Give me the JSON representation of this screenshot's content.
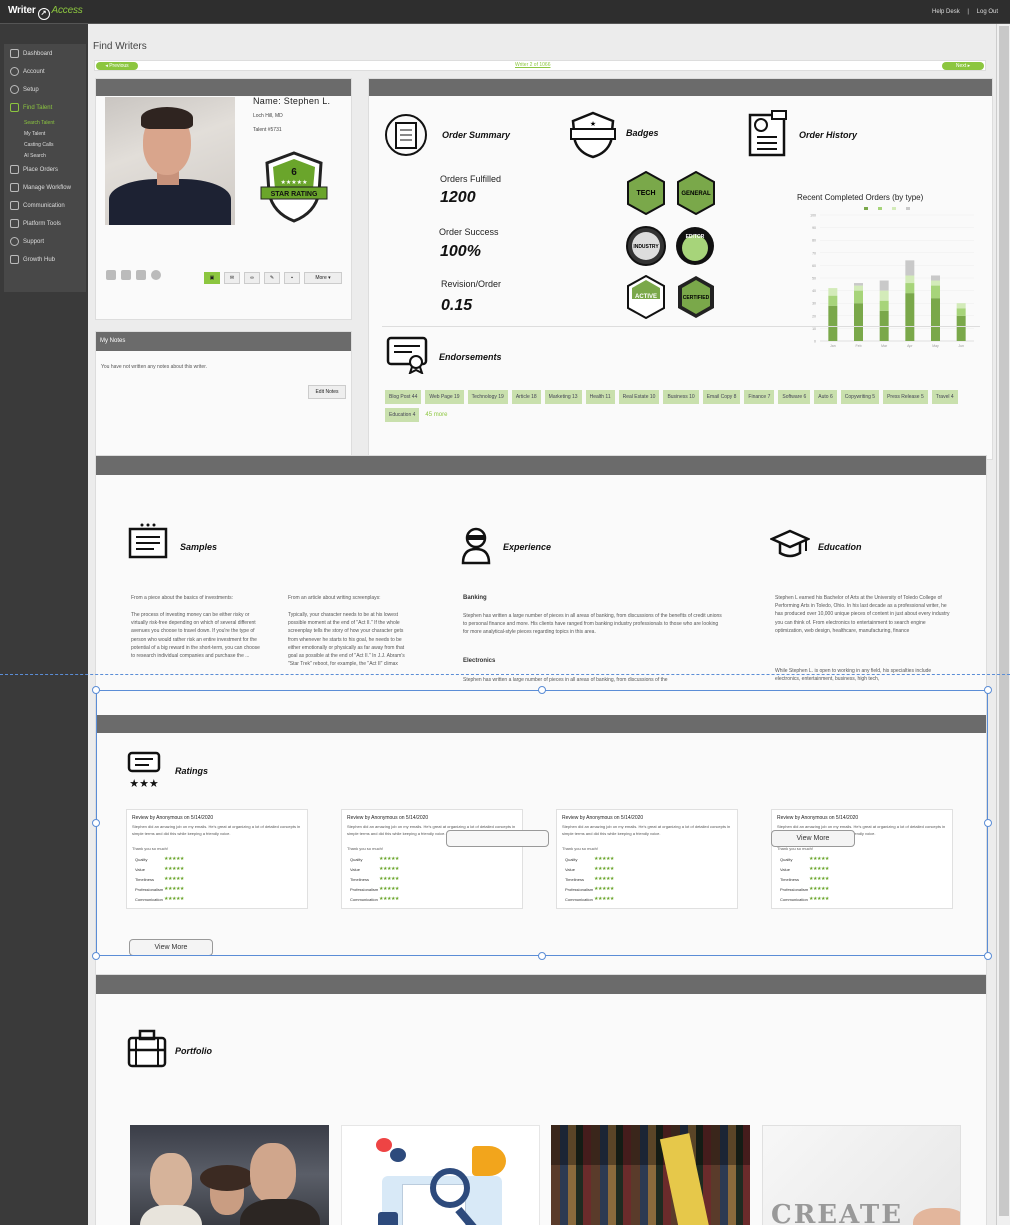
{
  "topbar": {
    "logo_main": "Writer",
    "logo_accent": "Access",
    "help_desk": "Help Desk",
    "separator": "|",
    "logout": "Log Out"
  },
  "sidebar": {
    "items": [
      {
        "label": "Dashboard",
        "icon": "dashboard-icon"
      },
      {
        "label": "Account",
        "icon": "user-icon"
      },
      {
        "label": "Setup",
        "icon": "gear-icon"
      },
      {
        "label": "Find Talent",
        "icon": "users-icon"
      },
      {
        "label": "Place Orders",
        "icon": "cart-icon"
      },
      {
        "label": "Manage Workflow",
        "icon": "workflow-icon"
      },
      {
        "label": "Communication",
        "icon": "mail-icon"
      },
      {
        "label": "Platform Tools",
        "icon": "tools-icon"
      },
      {
        "label": "Support",
        "icon": "info-icon"
      },
      {
        "label": "Growth Hub",
        "icon": "chart-icon"
      }
    ],
    "sub_items": [
      "Search Talent",
      "My Talent",
      "Casting Calls",
      "AI Search"
    ]
  },
  "page": {
    "title": "Find Writers",
    "prev": "Previous",
    "next": "Next",
    "pager": "Writer 2 of 1066"
  },
  "profile": {
    "name": "Name: Stephen L.",
    "location": "Loch Hill, MD",
    "talent_id": "Talent #5731",
    "star_level": "6",
    "star_rating_label": "STAR RATING",
    "more": "More",
    "notes_title": "My Notes",
    "notes_text": "You have not written any notes about this writer.",
    "edit_notes": "Edit Notes"
  },
  "summary": {
    "order_summary": "Order Summary",
    "badges": "Badges",
    "order_history": "Order History",
    "orders_fulfilled_label": "Orders Fulfilled",
    "orders_fulfilled": "1200",
    "order_success_label": "Order Success",
    "order_success": "100%",
    "revision_label": "Revision/Order",
    "revision": "0.15",
    "badge_names": [
      "TECH",
      "GENERAL",
      "INDUSTRY",
      "EDITOR",
      "ACTIVE",
      "CERTIFIED"
    ],
    "endorsements_title": "Endorsements",
    "endorsements": [
      "Blog Post 44",
      "Web Page 19",
      "Technology 19",
      "Article 18",
      "Marketing 13",
      "Health 11",
      "Real Estate 10",
      "Business 10",
      "Email Copy 8",
      "Finance 7",
      "Software 6",
      "Auto 6",
      "Copywriting 5",
      "Press Release 5",
      "Travel 4",
      "Education 4"
    ],
    "endorsements_more": "45 more"
  },
  "chart_data": {
    "type": "bar",
    "title": "Recent Completed Orders (by type)",
    "categories": [
      "Jan",
      "Feb",
      "Mar",
      "Apr",
      "May",
      "Jun"
    ],
    "series": [
      {
        "name": "Blog",
        "values": [
          28,
          30,
          24,
          38,
          34,
          20
        ],
        "color": "#7aa84a"
      },
      {
        "name": "Web",
        "values": [
          8,
          10,
          8,
          8,
          10,
          6
        ],
        "color": "#a7d47a"
      },
      {
        "name": "Article",
        "values": [
          6,
          4,
          8,
          6,
          4,
          4
        ],
        "color": "#d3ebb9"
      },
      {
        "name": "Other",
        "values": [
          0,
          2,
          8,
          12,
          4,
          0
        ],
        "color": "#c9c9c9"
      }
    ],
    "ylim": [
      0,
      100
    ],
    "yticks": [
      "0",
      "10",
      "20",
      "30",
      "40",
      "50",
      "60",
      "70",
      "80",
      "90",
      "100"
    ]
  },
  "details": {
    "samples_title": "Samples",
    "sample1_intro": "From a piece about the basics of investments:",
    "sample1_text": "The process of investing money can be either risky or virtually risk-free depending on which of several different avenues you choose to travel down. If you're the type of person who would rather risk an entire investment for the potential of a big reward in the short-term, you can choose to research individual companies and purchase the ...",
    "sample2_intro": "From an article about writing screenplays:",
    "sample2_text": "Typically, your character needs to be at his lowest possible moment at the end of \"Act II.\" If the whole screenplay tells the story of how your character gets from whenever he starts to his goal, he needs to be either emotionally or physically as far away from that goal as possible at the end of \"Act II.\" In J.J. Abram's \"Star Trek\" reboot, for example, the \"Act II\" climax",
    "experience_title": "Experience",
    "exp_banking": "Banking",
    "exp_banking_text": "Stephen has written a large number of pieces in all areas of banking, from discussions of the benefits of credit unions to personal finance and more. His clients have ranged from banking industry professionals to those who are looking for more analytical-style pieces regarding topics in this area.",
    "exp_electronics": "Electronics",
    "exp_electronics_text": "Stephen has written a large number of pieces in all areas of banking, from discussions of the",
    "education_title": "Education",
    "edu_text": "Stephen L earned his Bachelor of Arts at the University of Toledo College of Performing Arts in Toledo, Ohio. In his last decade as a professional writer, he has produced over 10,000 unique pieces of content in just about every industry you can think of. From electronics to entertainment to search engine optimization, web design, healthcare, manufacturing, finance",
    "edu_text2": "While Stephen L. is open to working in any field, his specialties include electronics, entertainment, business, high tech,"
  },
  "ratings": {
    "title": "Ratings",
    "review_header": "Review by Anonymous on 5/14/2020",
    "review_body": "Stephen did an amazing job on my emails. He's great at organizing a lot of detailed concepts in simple terms and did this while keeping a friendly voice.",
    "thanks": "Thank you so much!",
    "criteria": [
      "Quality",
      "Value",
      "Timeliness",
      "Professionalism",
      "Communication"
    ],
    "stars": "★★★★★",
    "view_more": "View More"
  },
  "portfolio": {
    "title": "Portfolio",
    "create_text": "CREATE"
  }
}
